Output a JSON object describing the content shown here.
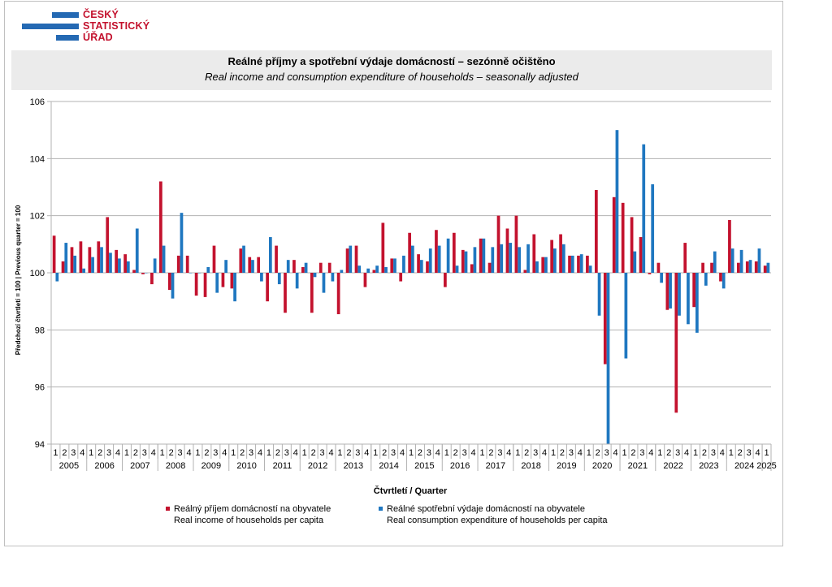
{
  "logo": {
    "line1": "ČESKÝ",
    "line2": "STATISTICKÝ",
    "line3": "ÚŘAD"
  },
  "header": {
    "title_cz": "Reálné příjmy a spotřební výdaje domácností – sezónně očištěno",
    "title_en": "Real income and consumption expenditure of households – seasonally adjusted"
  },
  "legend": {
    "income_cz": "Reálný příjem domácností na obyvatele",
    "income_en": "Real income of households per capita",
    "cons_cz": "Reálné spotřební výdaje domácností na obyvatele",
    "cons_en": "Real consumption expenditure of households per capita"
  },
  "chart_data": {
    "type": "bar",
    "xlabel": "Čtvrtletí / Quarter",
    "ylabel": "Předchozí čtvrtletí = 100 | Previous quarter = 100",
    "ylim": [
      94,
      106
    ],
    "yticks": [
      94,
      96,
      98,
      100,
      102,
      104,
      106
    ],
    "baseline": 100,
    "grid": true,
    "legend_position": "bottom",
    "years": [
      "2005",
      "2006",
      "2007",
      "2008",
      "2009",
      "2010",
      "2011",
      "2012",
      "2013",
      "2014",
      "2015",
      "2016",
      "2017",
      "2018",
      "2019",
      "2020",
      "2021",
      "2022",
      "2023",
      "2024",
      "2025"
    ],
    "quarters": [
      "1",
      "2",
      "3",
      "4",
      "1",
      "2",
      "3",
      "4",
      "1",
      "2",
      "3",
      "4",
      "1",
      "2",
      "3",
      "4",
      "1",
      "2",
      "3",
      "4",
      "1",
      "2",
      "3",
      "4",
      "1",
      "2",
      "3",
      "4",
      "1",
      "2",
      "3",
      "4",
      "1",
      "2",
      "3",
      "4",
      "1",
      "2",
      "3",
      "4",
      "1",
      "2",
      "3",
      "4",
      "1",
      "2",
      "3",
      "4",
      "1",
      "2",
      "3",
      "4",
      "1",
      "2",
      "3",
      "4",
      "1",
      "2",
      "3",
      "4",
      "1",
      "2",
      "3",
      "4",
      "1",
      "2",
      "3",
      "4",
      "1",
      "2",
      "3",
      "4",
      "1",
      "2",
      "3",
      "4",
      "1",
      "2",
      "3",
      "4",
      "1"
    ],
    "series": [
      {
        "name": "Reálný příjem domácností na obyvatele / Real income of households per capita",
        "color": "#c3122e",
        "values": [
          101.3,
          100.4,
          100.9,
          101.1,
          100.9,
          101.1,
          101.95,
          100.8,
          100.65,
          100.1,
          99.95,
          99.6,
          103.2,
          99.4,
          100.6,
          100.6,
          99.2,
          99.15,
          100.95,
          99.5,
          99.45,
          100.85,
          100.55,
          100.55,
          99.0,
          100.95,
          98.6,
          100.45,
          100.2,
          98.6,
          100.35,
          100.35,
          98.55,
          100.85,
          100.95,
          99.5,
          100.1,
          101.75,
          100.5,
          99.7,
          101.4,
          100.65,
          100.4,
          101.5,
          99.5,
          101.4,
          100.8,
          100.3,
          101.2,
          100.35,
          102.0,
          101.55,
          102.0,
          100.1,
          101.35,
          100.55,
          101.15,
          101.35,
          100.6,
          100.6,
          100.6,
          102.9,
          96.8,
          102.65,
          102.45,
          101.95,
          101.25,
          99.95,
          100.35,
          98.7,
          95.1,
          101.05,
          98.8,
          100.35,
          100.35,
          99.7,
          101.85,
          100.35,
          100.4,
          100.4,
          100.25
        ]
      },
      {
        "name": "Reálné spotřební výdaje domácností na obyvatele / Real consumption expenditure of households per capita",
        "color": "#1f77c0",
        "values": [
          99.7,
          101.05,
          100.6,
          100.15,
          100.55,
          100.9,
          100.7,
          100.5,
          100.4,
          101.55,
          100.0,
          100.5,
          100.95,
          99.1,
          102.1,
          100.0,
          100.0,
          100.2,
          99.3,
          100.45,
          99.0,
          100.95,
          100.45,
          99.7,
          101.25,
          99.6,
          100.45,
          99.45,
          100.35,
          99.85,
          99.3,
          99.7,
          100.1,
          100.95,
          100.25,
          100.15,
          100.25,
          100.2,
          100.5,
          100.6,
          100.95,
          100.45,
          100.85,
          100.95,
          101.2,
          100.25,
          100.75,
          100.9,
          101.2,
          100.9,
          101.0,
          101.05,
          100.9,
          101.0,
          100.4,
          100.55,
          100.85,
          101.0,
          100.6,
          100.65,
          100.25,
          98.5,
          94.0,
          105.0,
          97.0,
          100.75,
          104.5,
          103.1,
          99.65,
          98.75,
          98.5,
          98.2,
          97.9,
          99.55,
          100.75,
          99.45,
          100.85,
          100.8,
          100.45,
          100.85,
          100.35
        ]
      }
    ]
  }
}
